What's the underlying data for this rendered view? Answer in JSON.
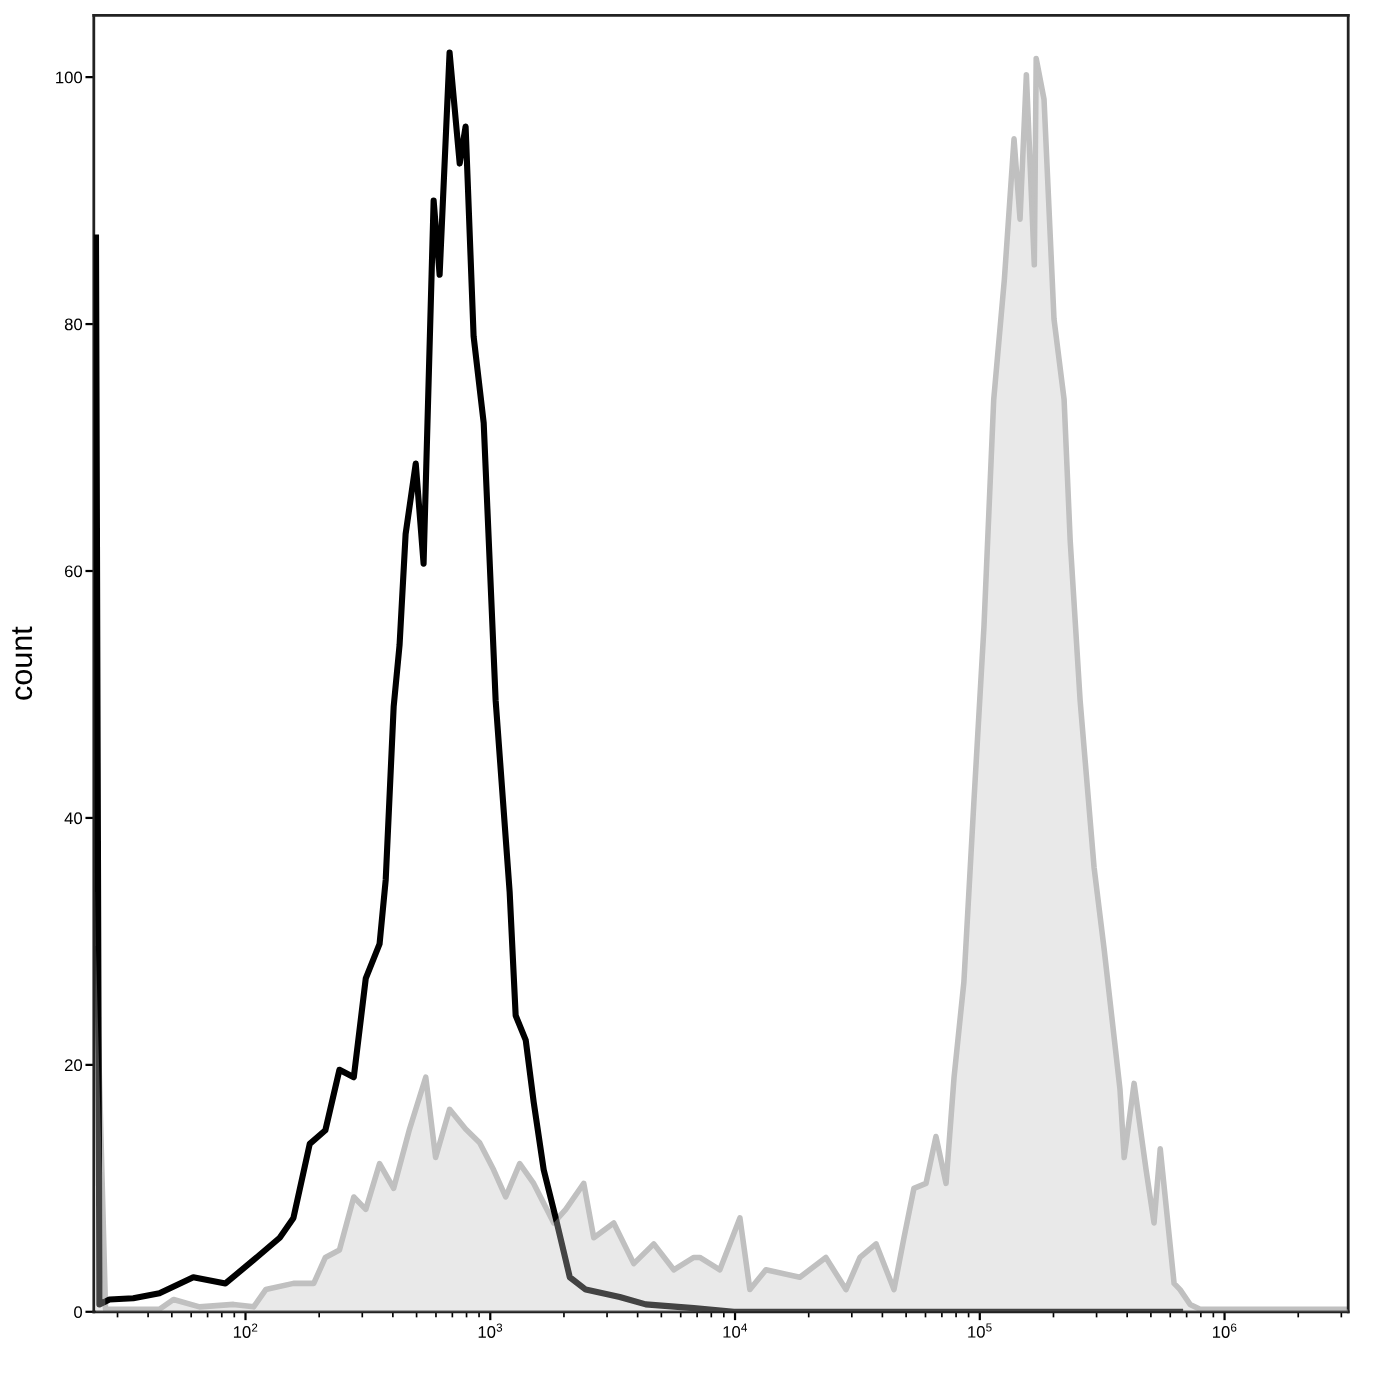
{
  "chart_data": {
    "type": "line",
    "ylabel": "count",
    "log": "x",
    "xlim": [
      24,
      3200000
    ],
    "ylim": [
      0,
      105
    ],
    "xticks": [
      {
        "value": 100,
        "label": "10$^{2}$"
      },
      {
        "value": 1000,
        "label": "10$^{3}$"
      },
      {
        "value": 10000,
        "label": "10$^{4}$"
      },
      {
        "value": 100000,
        "label": "10$^{5}$"
      },
      {
        "value": 1000000,
        "label": "10$^{6}$"
      }
    ],
    "yticks": [
      0,
      20,
      40,
      60,
      80,
      100
    ],
    "series": [
      {
        "color": "#000000",
        "x": [
          24.5,
          25.3,
          27.8,
          34.8,
          44.5,
          61.2,
          82.8,
          108,
          138,
          157,
          183,
          212,
          242,
          277,
          310,
          353,
          374,
          403,
          426,
          451,
          496,
          534,
          587,
          621,
          682,
          750,
          793,
          855,
          940,
          1052,
          1200,
          1270,
          1396,
          1504,
          1653,
          1851,
          2113,
          2455,
          3381,
          4318,
          6788,
          9890,
          658000
        ],
        "values": [
          87,
          0.6,
          1,
          1.1,
          1.5,
          2.8,
          2.3,
          4.2,
          6,
          7.6,
          13.6,
          14.7,
          19.6,
          19,
          27,
          29.8,
          35,
          49,
          54,
          63,
          68.7,
          60.6,
          90,
          84,
          102,
          93,
          96,
          79,
          72,
          49.5,
          34,
          24,
          22,
          17,
          11.5,
          7.6,
          2.8,
          1.8,
          1.2,
          0.6,
          0.3,
          0,
          0
        ]
      },
      {
        "type": "area",
        "color": "#c0c0c0",
        "x": [
          24.5,
          26.8,
          44.5,
          50.8,
          64.9,
          89.3,
          108,
          121,
          157,
          190,
          212,
          242,
          277,
          310,
          353,
          403,
          468,
          545,
          598,
          682,
          793,
          905,
          1032,
          1156,
          1319,
          1504,
          1817,
          2034,
          2410,
          2648,
          3195,
          3857,
          4656,
          5620,
          6788,
          7180,
          8670,
          10470,
          11500,
          13370,
          18400,
          23500,
          28400,
          32400,
          37700,
          44600,
          49000,
          53800,
          60300,
          66200,
          72800,
          78500,
          86100,
          94600,
          104000,
          114000,
          126000,
          138000,
          146000,
          155000,
          167000,
          170000,
          183000,
          201000,
          221000,
          234000,
          257000,
          293000,
          322000,
          374000,
          389000,
          427000,
          478000,
          515000,
          546000,
          622000,
          658000,
          723000,
          794000,
          3200000
        ],
        "values": [
          29.4,
          0.2,
          0.2,
          1,
          0.4,
          0.6,
          0.4,
          1.8,
          2.3,
          2.3,
          4.4,
          5,
          9.3,
          8.3,
          12,
          10,
          14.8,
          19,
          12.5,
          16.4,
          14.8,
          13.7,
          11.5,
          9.3,
          12,
          10.4,
          7.2,
          8.3,
          10.4,
          6,
          7.2,
          3.9,
          5.5,
          3.4,
          4.4,
          4.4,
          3.4,
          7.6,
          1.8,
          3.4,
          2.8,
          4.4,
          1.8,
          4.4,
          5.5,
          1.8,
          6,
          10,
          10.4,
          14.2,
          10.4,
          19,
          26.7,
          41.3,
          55.5,
          73.9,
          83.6,
          95,
          88.5,
          100.2,
          84.8,
          101.5,
          98.2,
          80.4,
          73.9,
          62.5,
          49.5,
          36,
          29.4,
          18,
          12.5,
          18.5,
          11.5,
          7.2,
          13.2,
          2.3,
          1.8,
          0.6,
          0.2,
          0.2
        ]
      }
    ]
  }
}
